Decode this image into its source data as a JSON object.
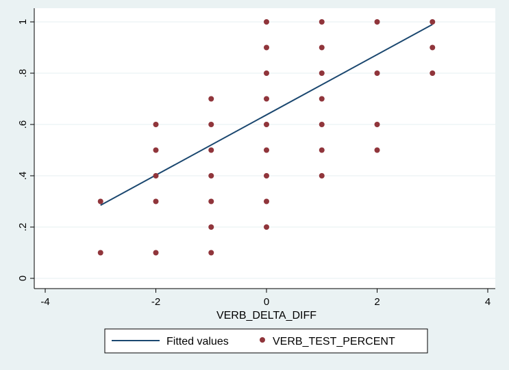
{
  "chart_data": {
    "type": "scatter",
    "xlabel": "VERB_DELTA_DIFF",
    "ylabel": "",
    "xlim": [
      -4,
      4
    ],
    "ylim": [
      0,
      1
    ],
    "x_ticks": [
      -4,
      -2,
      0,
      2,
      4
    ],
    "x_tick_labels": [
      "-4",
      "-2",
      "0",
      "2",
      "4"
    ],
    "y_ticks": [
      0,
      0.2,
      0.4,
      0.6,
      0.8,
      1
    ],
    "y_tick_labels": [
      "0",
      ".2",
      ".4",
      ".6",
      ".8",
      "1"
    ],
    "grid": "horizontal",
    "legend_position": "bottom",
    "series": [
      {
        "name": "Fitted values",
        "type": "line",
        "color": "#1a476f",
        "points": [
          [
            -3,
            0.285
          ],
          [
            3,
            0.99
          ]
        ]
      },
      {
        "name": "VERB_TEST_PERCENT",
        "type": "scatter",
        "color": "#90353b",
        "points": [
          [
            -3,
            0.3
          ],
          [
            -3,
            0.1
          ],
          [
            -2,
            0.6
          ],
          [
            -2,
            0.5
          ],
          [
            -2,
            0.4
          ],
          [
            -2,
            0.3
          ],
          [
            -2,
            0.1
          ],
          [
            -1,
            0.7
          ],
          [
            -1,
            0.6
          ],
          [
            -1,
            0.5
          ],
          [
            -1,
            0.4
          ],
          [
            -1,
            0.3
          ],
          [
            -1,
            0.2
          ],
          [
            -1,
            0.1
          ],
          [
            0,
            1
          ],
          [
            0,
            0.9
          ],
          [
            0,
            0.8
          ],
          [
            0,
            0.7
          ],
          [
            0,
            0.6
          ],
          [
            0,
            0.5
          ],
          [
            0,
            0.4
          ],
          [
            0,
            0.3
          ],
          [
            0,
            0.2
          ],
          [
            1,
            1
          ],
          [
            1,
            0.9
          ],
          [
            1,
            0.8
          ],
          [
            1,
            0.7
          ],
          [
            1,
            0.6
          ],
          [
            1,
            0.5
          ],
          [
            1,
            0.4
          ],
          [
            2,
            1
          ],
          [
            2,
            0.8
          ],
          [
            2,
            0.6
          ],
          [
            2,
            0.5
          ],
          [
            3,
            1
          ],
          [
            3,
            0.9
          ],
          [
            3,
            0.8
          ]
        ]
      }
    ],
    "legend": {
      "entries": [
        "Fitted values",
        "VERB_TEST_PERCENT"
      ]
    }
  }
}
